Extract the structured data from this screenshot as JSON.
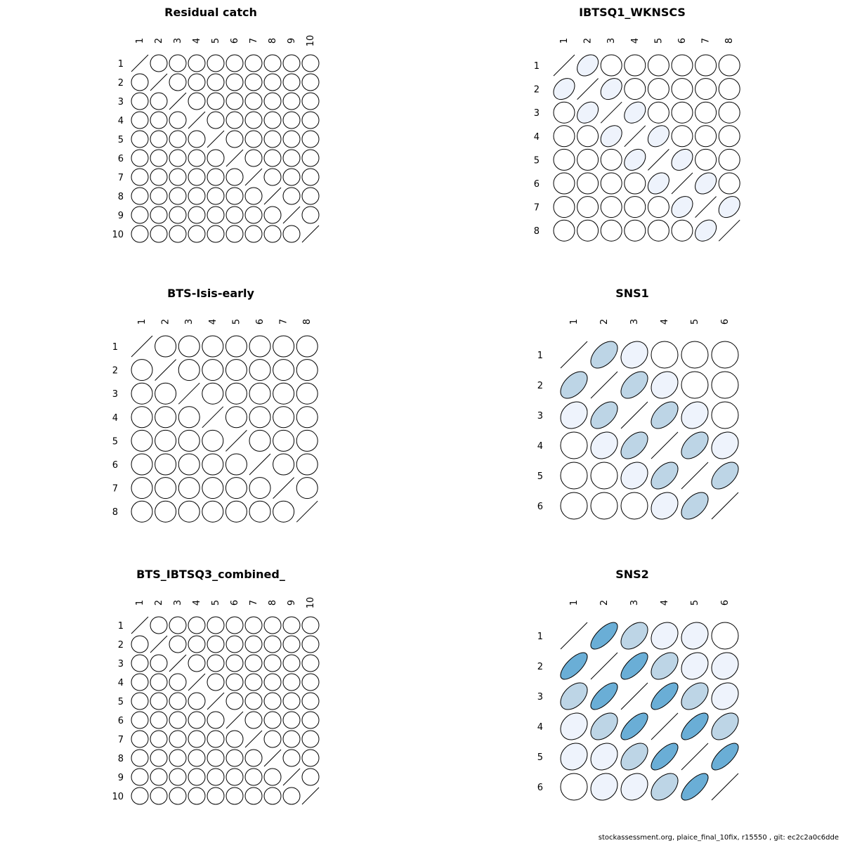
{
  "chart_data": [
    {
      "type": "correlation-ellipse-matrix",
      "title": "Residual catch",
      "labels": [
        "1",
        "2",
        "3",
        "4",
        "5",
        "6",
        "7",
        "8",
        "9",
        "10"
      ],
      "note": "all off-diagonal correlations near zero (circles)",
      "correlations": [
        [
          1,
          0,
          0,
          0,
          0,
          0,
          0,
          0,
          0,
          0
        ],
        [
          0,
          1,
          0,
          0,
          0,
          0,
          0,
          0,
          0,
          0
        ],
        [
          0,
          0,
          1,
          0,
          0,
          0,
          0,
          0,
          0,
          0
        ],
        [
          0,
          0,
          0,
          1,
          0,
          0,
          0,
          0,
          0,
          0
        ],
        [
          0,
          0,
          0,
          0,
          1,
          0,
          0,
          0,
          0,
          0
        ],
        [
          0,
          0,
          0,
          0,
          0,
          1,
          0,
          0,
          0,
          0
        ],
        [
          0,
          0,
          0,
          0,
          0,
          0,
          1,
          0,
          0,
          0
        ],
        [
          0,
          0,
          0,
          0,
          0,
          0,
          0,
          1,
          0,
          0
        ],
        [
          0,
          0,
          0,
          0,
          0,
          0,
          0,
          0,
          1,
          0
        ],
        [
          0,
          0,
          0,
          0,
          0,
          0,
          0,
          0,
          0,
          1
        ]
      ]
    },
    {
      "type": "correlation-ellipse-matrix",
      "title": "IBTSQ1_WKNSCS",
      "labels": [
        "1",
        "2",
        "3",
        "4",
        "5",
        "6",
        "7",
        "8"
      ],
      "correlations": [
        [
          1,
          0.3,
          0,
          0,
          0,
          0,
          0,
          0
        ],
        [
          0.3,
          1,
          0.3,
          0,
          0,
          0,
          0,
          0
        ],
        [
          0,
          0.3,
          1,
          0.3,
          0,
          0,
          0,
          0
        ],
        [
          0,
          0,
          0.3,
          1,
          0.3,
          0,
          0,
          0
        ],
        [
          0,
          0,
          0,
          0.3,
          1,
          0.3,
          0,
          0
        ],
        [
          0,
          0,
          0,
          0,
          0.3,
          1,
          0.3,
          0
        ],
        [
          0,
          0,
          0,
          0,
          0,
          0.3,
          1,
          0.3
        ],
        [
          0,
          0,
          0,
          0,
          0,
          0,
          0.3,
          1
        ]
      ]
    },
    {
      "type": "correlation-ellipse-matrix",
      "title": "BTS-Isis-early",
      "labels": [
        "1",
        "2",
        "3",
        "4",
        "5",
        "6",
        "7",
        "8"
      ],
      "correlations": [
        [
          1,
          0,
          0,
          0,
          0,
          0,
          0,
          0
        ],
        [
          0,
          1,
          0,
          0,
          0,
          0,
          0,
          0
        ],
        [
          0,
          0,
          1,
          0,
          0,
          0,
          0,
          0
        ],
        [
          0,
          0,
          0,
          1,
          0,
          0,
          0,
          0
        ],
        [
          0,
          0,
          0,
          0,
          1,
          0,
          0,
          0
        ],
        [
          0,
          0,
          0,
          0,
          0,
          1,
          0,
          0
        ],
        [
          0,
          0,
          0,
          0,
          0,
          0,
          1,
          0
        ],
        [
          0,
          0,
          0,
          0,
          0,
          0,
          0,
          1
        ]
      ]
    },
    {
      "type": "correlation-ellipse-matrix",
      "title": "SNS1",
      "labels": [
        "1",
        "2",
        "3",
        "4",
        "5",
        "6"
      ],
      "correlations": [
        [
          1,
          0.5,
          0.2,
          0,
          0,
          0
        ],
        [
          0.5,
          1,
          0.5,
          0.2,
          0,
          0
        ],
        [
          0.2,
          0.5,
          1,
          0.5,
          0.2,
          0
        ],
        [
          0,
          0.2,
          0.5,
          1,
          0.5,
          0.2
        ],
        [
          0,
          0,
          0.2,
          0.5,
          1,
          0.5
        ],
        [
          0,
          0,
          0,
          0.2,
          0.5,
          1
        ]
      ]
    },
    {
      "type": "correlation-ellipse-matrix",
      "title": "BTS_IBTSQ3_combined_",
      "labels": [
        "1",
        "2",
        "3",
        "4",
        "5",
        "6",
        "7",
        "8",
        "9",
        "10"
      ],
      "correlations": [
        [
          1,
          0,
          0,
          0,
          0,
          0,
          0,
          0,
          0,
          0
        ],
        [
          0,
          1,
          0,
          0,
          0,
          0,
          0,
          0,
          0,
          0
        ],
        [
          0,
          0,
          1,
          0,
          0,
          0,
          0,
          0,
          0,
          0
        ],
        [
          0,
          0,
          0,
          1,
          0,
          0,
          0,
          0,
          0,
          0
        ],
        [
          0,
          0,
          0,
          0,
          1,
          0,
          0,
          0,
          0,
          0
        ],
        [
          0,
          0,
          0,
          0,
          0,
          1,
          0,
          0,
          0,
          0
        ],
        [
          0,
          0,
          0,
          0,
          0,
          0,
          1,
          0,
          0,
          0
        ],
        [
          0,
          0,
          0,
          0,
          0,
          0,
          0,
          1,
          0,
          0
        ],
        [
          0,
          0,
          0,
          0,
          0,
          0,
          0,
          0,
          1,
          0
        ],
        [
          0,
          0,
          0,
          0,
          0,
          0,
          0,
          0,
          0,
          1
        ]
      ]
    },
    {
      "type": "correlation-ellipse-matrix",
      "title": "SNS2",
      "labels": [
        "1",
        "2",
        "3",
        "4",
        "5",
        "6"
      ],
      "correlations": [
        [
          1,
          0.7,
          0.45,
          0.2,
          0.15,
          0
        ],
        [
          0.7,
          1,
          0.7,
          0.45,
          0.2,
          0.15
        ],
        [
          0.45,
          0.7,
          1,
          0.7,
          0.45,
          0.2
        ],
        [
          0.2,
          0.45,
          0.7,
          1,
          0.7,
          0.45
        ],
        [
          0.15,
          0.2,
          0.45,
          0.7,
          1,
          0.7
        ],
        [
          0,
          0.15,
          0.2,
          0.45,
          0.7,
          1
        ]
      ]
    }
  ],
  "colors": {
    "zero": "#ffffff",
    "weak": "#eef3fc",
    "medium": "#bdd5e6",
    "strong": "#6aaed6",
    "stroke": "#000000"
  },
  "footer": "stockassessment.org, plaice_final_10fix, r15550 , git: ec2c2a0c6dde"
}
